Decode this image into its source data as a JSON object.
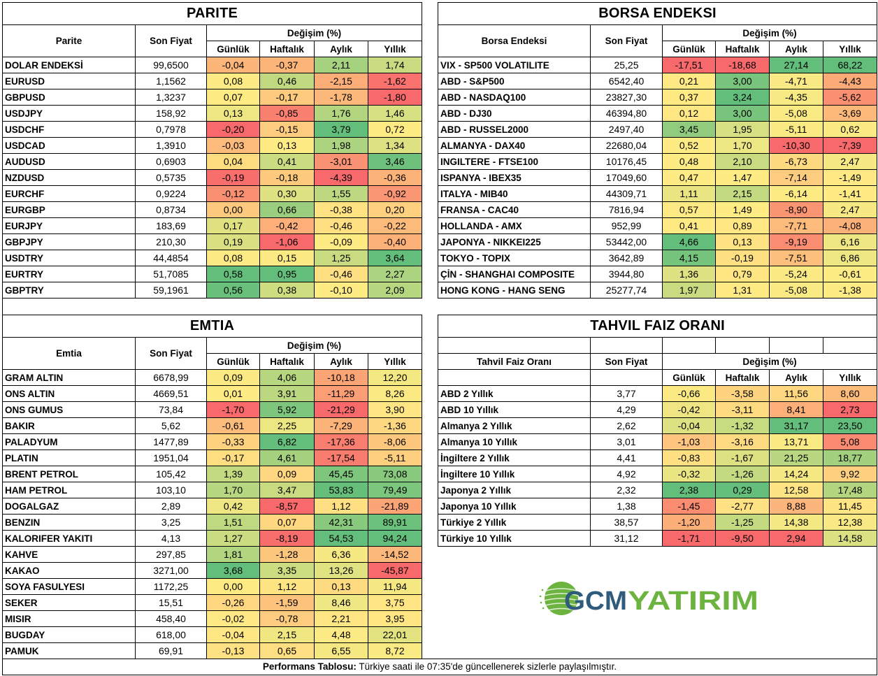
{
  "color_scale": {
    "low": "#F8696B",
    "mid": "#FFEB84",
    "high": "#63BE7B"
  },
  "columns": {
    "price": "Son Fiyat",
    "change": "Değişim (%)",
    "periods": [
      "Günlük",
      "Haftalık",
      "Aylık",
      "Yıllık"
    ]
  },
  "tables": {
    "parite": {
      "title": "PARITE",
      "name_header": "Parite",
      "rows": [
        {
          "name": "DOLAR ENDEKSİ",
          "price": "99,6500",
          "changes": [
            "-0,04",
            "-0,37",
            "2,11",
            "1,74"
          ]
        },
        {
          "name": "EURUSD",
          "price": "1,1562",
          "changes": [
            "0,08",
            "0,46",
            "-2,15",
            "-1,62"
          ]
        },
        {
          "name": "GBPUSD",
          "price": "1,3237",
          "changes": [
            "0,07",
            "-0,17",
            "-1,78",
            "-1,80"
          ]
        },
        {
          "name": "USDJPY",
          "price": "158,92",
          "changes": [
            "0,13",
            "-0,85",
            "1,76",
            "1,46"
          ]
        },
        {
          "name": "USDCHF",
          "price": "0,7978",
          "changes": [
            "-0,20",
            "-0,15",
            "3,79",
            "0,72"
          ]
        },
        {
          "name": "USDCAD",
          "price": "1,3910",
          "changes": [
            "-0,03",
            "0,13",
            "1,98",
            "1,34"
          ]
        },
        {
          "name": "AUDUSD",
          "price": "0,6903",
          "changes": [
            "0,04",
            "0,41",
            "-3,01",
            "3,46"
          ]
        },
        {
          "name": "NZDUSD",
          "price": "0,5735",
          "changes": [
            "-0,19",
            "-0,18",
            "-4,39",
            "-0,36"
          ]
        },
        {
          "name": "EURCHF",
          "price": "0,9224",
          "changes": [
            "-0,12",
            "0,30",
            "1,55",
            "-0,92"
          ]
        },
        {
          "name": "EURGBP",
          "price": "0,8734",
          "changes": [
            "0,00",
            "0,66",
            "-0,38",
            "0,20"
          ]
        },
        {
          "name": "EURJPY",
          "price": "183,69",
          "changes": [
            "0,17",
            "-0,42",
            "-0,46",
            "-0,22"
          ]
        },
        {
          "name": "GBPJPY",
          "price": "210,30",
          "changes": [
            "0,19",
            "-1,06",
            "-0,09",
            "-0,40"
          ]
        },
        {
          "name": "USDTRY",
          "price": "44,4854",
          "changes": [
            "0,08",
            "0,15",
            "1,25",
            "3,64"
          ]
        },
        {
          "name": "EURTRY",
          "price": "51,7085",
          "changes": [
            "0,58",
            "0,95",
            "-0,46",
            "2,27"
          ]
        },
        {
          "name": "GBPTRY",
          "price": "59,1961",
          "changes": [
            "0,56",
            "0,38",
            "-0,10",
            "2,09"
          ]
        }
      ]
    },
    "borsa": {
      "title": "BORSA ENDEKSI",
      "name_header": "Borsa Endeksi",
      "rows": [
        {
          "name": "VIX  - SP500 VOLATILITE",
          "price": "25,25",
          "changes": [
            "-17,51",
            "-18,68",
            "27,14",
            "68,22"
          ]
        },
        {
          "name": "ABD - S&P500",
          "price": "6542,40",
          "changes": [
            "0,21",
            "3,00",
            "-4,71",
            "-4,43"
          ]
        },
        {
          "name": "ABD - NASDAQ100",
          "price": "23827,30",
          "changes": [
            "0,37",
            "3,24",
            "-4,35",
            "-5,62"
          ]
        },
        {
          "name": "ABD - DJ30",
          "price": "46394,80",
          "changes": [
            "0,12",
            "3,00",
            "-5,08",
            "-3,69"
          ]
        },
        {
          "name": "ABD - RUSSEL2000",
          "price": "2497,40",
          "changes": [
            "3,45",
            "1,95",
            "-5,11",
            "0,62"
          ]
        },
        {
          "name": "ALMANYA - DAX40",
          "price": "22680,04",
          "changes": [
            "0,52",
            "1,70",
            "-10,30",
            "-7,39"
          ]
        },
        {
          "name": "INGILTERE - FTSE100",
          "price": "10176,45",
          "changes": [
            "0,48",
            "2,10",
            "-6,73",
            "2,47"
          ]
        },
        {
          "name": "ISPANYA - IBEX35",
          "price": "17049,60",
          "changes": [
            "0,47",
            "1,47",
            "-7,14",
            "-1,49"
          ]
        },
        {
          "name": "ITALYA - MIB40",
          "price": "44309,71",
          "changes": [
            "1,11",
            "2,15",
            "-6,14",
            "-1,41"
          ]
        },
        {
          "name": "FRANSA - CAC40",
          "price": "7816,94",
          "changes": [
            "0,57",
            "1,49",
            "-8,90",
            "2,47"
          ]
        },
        {
          "name": "HOLLANDA - AMX",
          "price": "952,99",
          "changes": [
            "0,41",
            "0,89",
            "-7,71",
            "-4,08"
          ]
        },
        {
          "name": "JAPONYA - NIKKEI225",
          "price": "53442,00",
          "changes": [
            "4,66",
            "0,13",
            "-9,19",
            "6,16"
          ]
        },
        {
          "name": "TOKYO - TOPIX",
          "price": "3642,89",
          "changes": [
            "4,15",
            "-0,19",
            "-7,51",
            "6,86"
          ]
        },
        {
          "name": "ÇİN - SHANGHAI COMPOSITE",
          "price": "3944,80",
          "changes": [
            "1,36",
            "0,79",
            "-5,24",
            "-0,61"
          ]
        },
        {
          "name": "HONG KONG - HANG SENG",
          "price": "25277,74",
          "changes": [
            "1,97",
            "1,31",
            "-5,08",
            "-1,38"
          ]
        }
      ]
    },
    "emtia": {
      "title": "EMTIA",
      "name_header": "Emtia",
      "rows": [
        {
          "name": "GRAM ALTIN",
          "price": "6678,99",
          "changes": [
            "0,09",
            "4,06",
            "-10,18",
            "12,20"
          ]
        },
        {
          "name": "ONS ALTIN",
          "price": "4669,51",
          "changes": [
            "0,01",
            "3,91",
            "-11,29",
            "8,26"
          ]
        },
        {
          "name": "ONS GUMUS",
          "price": "73,84",
          "changes": [
            "-1,70",
            "5,92",
            "-21,29",
            "3,90"
          ]
        },
        {
          "name": "BAKIR",
          "price": "5,62",
          "changes": [
            "-0,61",
            "2,25",
            "-7,29",
            "-1,36"
          ]
        },
        {
          "name": "PALADYUM",
          "price": "1477,89",
          "changes": [
            "-0,33",
            "6,82",
            "-17,36",
            "-8,06"
          ]
        },
        {
          "name": "PLATIN",
          "price": "1951,04",
          "changes": [
            "-0,17",
            "4,61",
            "-17,54",
            "-5,11"
          ]
        },
        {
          "name": "BRENT PETROL",
          "price": "105,42",
          "changes": [
            "1,39",
            "0,09",
            "45,45",
            "73,08"
          ]
        },
        {
          "name": "HAM PETROL",
          "price": "103,10",
          "changes": [
            "1,70",
            "3,47",
            "53,83",
            "79,49"
          ]
        },
        {
          "name": "DOGALGAZ",
          "price": "2,89",
          "changes": [
            "0,42",
            "-8,57",
            "1,12",
            "-21,89"
          ]
        },
        {
          "name": "BENZIN",
          "price": "3,25",
          "changes": [
            "1,51",
            "0,07",
            "42,31",
            "89,91"
          ]
        },
        {
          "name": "KALORIFER YAKITI",
          "price": "4,13",
          "changes": [
            "1,27",
            "-8,19",
            "54,53",
            "94,24"
          ]
        },
        {
          "name": "KAHVE",
          "price": "297,85",
          "changes": [
            "1,81",
            "-1,28",
            "6,36",
            "-14,52"
          ]
        },
        {
          "name": "KAKAO",
          "price": "3271,00",
          "changes": [
            "3,68",
            "3,35",
            "13,26",
            "-45,87"
          ]
        },
        {
          "name": "SOYA FASULYESI",
          "price": "1172,25",
          "changes": [
            "0,00",
            "1,12",
            "0,13",
            "11,94"
          ]
        },
        {
          "name": "SEKER",
          "price": "15,51",
          "changes": [
            "-0,26",
            "-1,59",
            "8,46",
            "3,75"
          ]
        },
        {
          "name": "MISIR",
          "price": "458,40",
          "changes": [
            "-0,02",
            "-0,78",
            "2,21",
            "3,95"
          ]
        },
        {
          "name": "BUGDAY",
          "price": "618,00",
          "changes": [
            "-0,04",
            "2,15",
            "4,48",
            "22,01"
          ]
        },
        {
          "name": "PAMUK",
          "price": "69,91",
          "changes": [
            "-0,13",
            "0,65",
            "6,55",
            "8,72"
          ]
        }
      ]
    },
    "tahvil": {
      "title": "TAHVIL FAIZ ORANI",
      "name_header": "Tahvil Faiz Oranı",
      "rows": [
        {
          "name": "ABD 2 Yıllık",
          "price": "3,77",
          "changes": [
            "-0,66",
            "-3,58",
            "11,56",
            "8,60"
          ]
        },
        {
          "name": "ABD 10 Yıllık",
          "price": "4,29",
          "changes": [
            "-0,42",
            "-3,11",
            "8,41",
            "2,73"
          ]
        },
        {
          "name": "Almanya 2 Yıllık",
          "price": "2,62",
          "changes": [
            "-0,04",
            "-1,32",
            "31,17",
            "23,50"
          ]
        },
        {
          "name": "Almanya 10 Yıllık",
          "price": "3,01",
          "changes": [
            "-1,03",
            "-3,16",
            "13,71",
            "5,08"
          ]
        },
        {
          "name": "İngiltere 2 Yıllık",
          "price": "4,41",
          "changes": [
            "-0,83",
            "-1,67",
            "21,25",
            "18,77"
          ]
        },
        {
          "name": "İngiltere 10 Yıllık",
          "price": "4,92",
          "changes": [
            "-0,32",
            "-1,26",
            "14,24",
            "9,92"
          ]
        },
        {
          "name": "Japonya 2 Yıllık",
          "price": "2,32",
          "changes": [
            "2,38",
            "0,29",
            "12,58",
            "17,48"
          ]
        },
        {
          "name": "Japonya 10 Yıllık",
          "price": "1,38",
          "changes": [
            "-1,45",
            "-2,77",
            "8,88",
            "11,45"
          ]
        },
        {
          "name": "Türkiye 2 Yıllık",
          "price": "38,57",
          "changes": [
            "-1,20",
            "-1,25",
            "14,38",
            "12,38"
          ]
        },
        {
          "name": "Türkiye 10 Yıllık",
          "price": "31,12",
          "changes": [
            "-1,71",
            "-9,50",
            "2,94",
            "14,58"
          ]
        }
      ]
    }
  },
  "logo": {
    "part1": "GCM",
    "part2": "YATIRIM",
    "color1": "#2F5B7C",
    "color2": "#6DB33F"
  },
  "footer": {
    "label": "Performans Tablosu:",
    "text": " Türkiye saati ile 07:35'de güncellenerek sizlerle paylaşılmıştır."
  }
}
